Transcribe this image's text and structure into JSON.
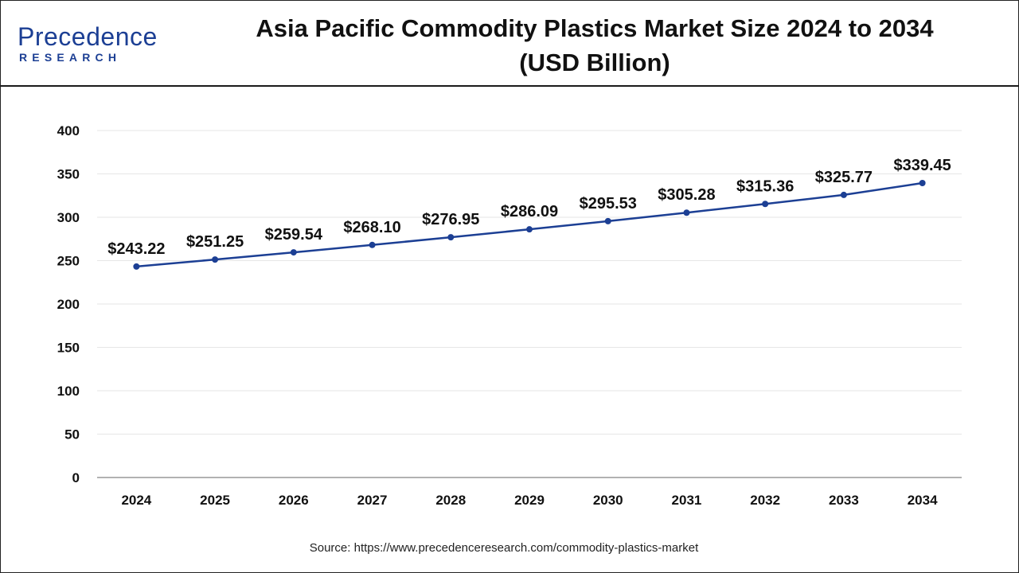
{
  "logo": {
    "main": "Precedence",
    "sub": "RESEARCH"
  },
  "header": {
    "title_line1": "Asia Pacific Commodity Plastics Market Size 2024 to 2034",
    "title_line2": "(USD Billion)"
  },
  "source": "Source: https://www.precedenceresearch.com/commodity-plastics-market",
  "colors": {
    "line": "#1c3f94",
    "axis": "#999999",
    "grid": "#e6e6e6",
    "text": "#111111"
  },
  "chart_data": {
    "type": "line",
    "title": "Asia Pacific Commodity Plastics Market Size 2024 to 2034 (USD Billion)",
    "xlabel": "",
    "ylabel": "",
    "categories": [
      "2024",
      "2025",
      "2026",
      "2027",
      "2028",
      "2029",
      "2030",
      "2031",
      "2032",
      "2033",
      "2034"
    ],
    "values": [
      243.22,
      251.25,
      259.54,
      268.1,
      276.95,
      286.09,
      295.53,
      305.28,
      315.36,
      325.77,
      339.45
    ],
    "data_labels": [
      "$243.22",
      "$251.25",
      "$259.54",
      "$268.10",
      "$276.95",
      "$286.09",
      "$295.53",
      "$305.28",
      "$315.36",
      "$325.77",
      "$339.45"
    ],
    "yticks": [
      0,
      50,
      100,
      150,
      200,
      250,
      300,
      350,
      400
    ],
    "ylim": [
      0,
      400
    ],
    "grid": true
  }
}
